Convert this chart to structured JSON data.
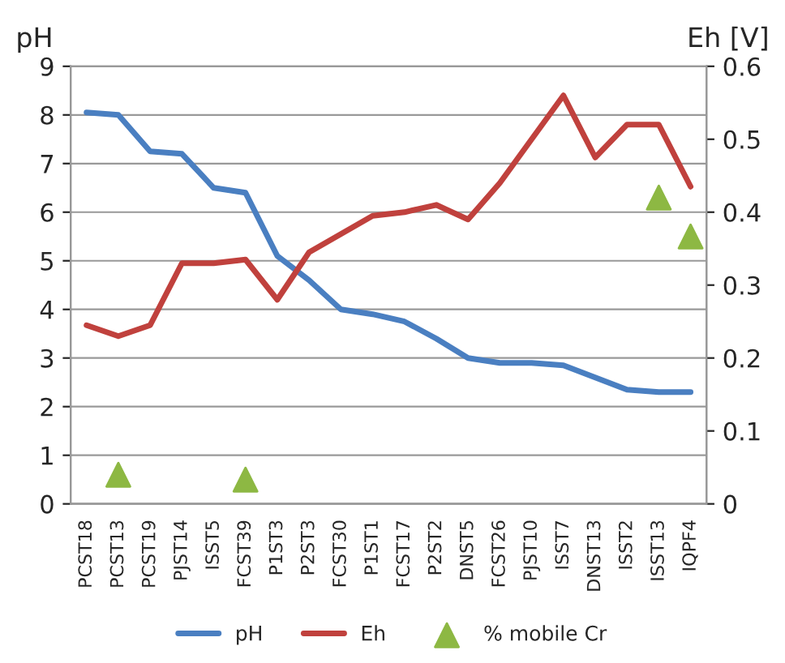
{
  "chart_data": {
    "type": "line",
    "ylabel": "pH",
    "y2label": "Eh [V]",
    "categories": [
      "PCST18",
      "PCST13",
      "PCST19",
      "PJST14",
      "ISST5",
      "FCST39",
      "P1ST3",
      "P2ST3",
      "FCST30",
      "P1ST1",
      "FCST17",
      "P2ST2",
      "DNST5",
      "FCST26",
      "PJST10",
      "ISST7",
      "DNST13",
      "ISST2",
      "ISST13",
      "IQPF4"
    ],
    "series": [
      {
        "name": "pH",
        "color": "#4a7fc1",
        "values": [
          8.05,
          8.0,
          7.25,
          7.2,
          6.5,
          6.4,
          5.1,
          4.6,
          4.0,
          3.9,
          3.75,
          3.4,
          3.0,
          2.9,
          2.9,
          2.85,
          2.6,
          2.35,
          2.3,
          2.3
        ]
      },
      {
        "name": "Eh",
        "color": "#c0413d",
        "axis": "y2",
        "values": [
          0.245,
          0.23,
          0.245,
          0.33,
          0.33,
          0.335,
          0.28,
          0.345,
          0.37,
          0.395,
          0.4,
          0.41,
          0.39,
          0.44,
          0.5,
          0.56,
          0.475,
          0.52,
          0.52,
          0.435
        ]
      },
      {
        "name": "% mobile Cr",
        "type": "scatter",
        "marker": "triangle",
        "color": "#8db843",
        "values": [
          null,
          0.6,
          null,
          null,
          null,
          0.5,
          null,
          null,
          null,
          null,
          null,
          null,
          null,
          null,
          null,
          null,
          null,
          null,
          6.3,
          5.5
        ]
      }
    ],
    "ylim": [
      0,
      9
    ],
    "yticks": [
      0,
      1,
      2,
      3,
      4,
      5,
      6,
      7,
      8,
      9
    ],
    "y2lim": [
      0,
      0.6
    ],
    "y2ticks": [
      0,
      0.1,
      0.2,
      0.3,
      0.4,
      0.5,
      0.6
    ],
    "grid": "y",
    "legend": "bottom"
  }
}
